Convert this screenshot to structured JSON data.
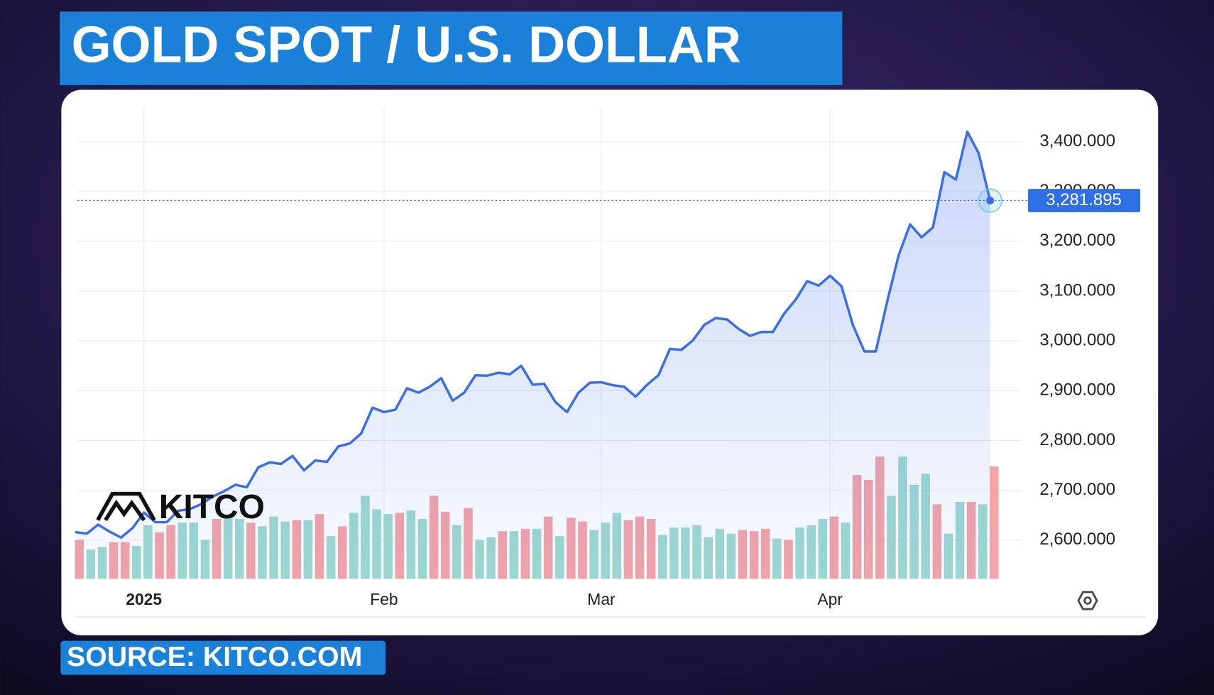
{
  "chart_data": {
    "type": "line",
    "title": "GOLD SPOT / U.S. DOLLAR",
    "source": "SOURCE: KITCO.COM",
    "watermark": "KITCO",
    "color": "#3a6ee8",
    "categories": [
      null,
      null,
      null,
      null,
      null,
      null,
      "2025",
      null,
      null,
      null,
      null,
      null,
      null,
      null,
      null,
      null,
      null,
      null,
      null,
      null,
      null,
      null,
      null,
      null,
      null,
      null,
      null,
      "Feb",
      null,
      null,
      null,
      null,
      null,
      null,
      null,
      null,
      null,
      null,
      null,
      null,
      null,
      null,
      null,
      null,
      null,
      null,
      "Mar",
      null,
      null,
      null,
      null,
      null,
      null,
      null,
      null,
      null,
      null,
      null,
      null,
      null,
      null,
      null,
      null,
      null,
      null,
      null,
      "Apr",
      null,
      null,
      null,
      null,
      null,
      null,
      null,
      null,
      null,
      null,
      null,
      null,
      null,
      null
    ],
    "values": [
      2616,
      2613,
      2631,
      2617,
      2605,
      2624,
      2655,
      2636,
      2636,
      2659,
      2662,
      2672,
      2687,
      2698,
      2711,
      2706,
      2746,
      2756,
      2753,
      2769,
      2740,
      2760,
      2757,
      2788,
      2794,
      2814,
      2866,
      2857,
      2862,
      2905,
      2896,
      2908,
      2925,
      2880,
      2896,
      2931,
      2930,
      2936,
      2933,
      2950,
      2912,
      2914,
      2877,
      2857,
      2896,
      2916,
      2917,
      2911,
      2908,
      2888,
      2912,
      2931,
      2984,
      2982,
      3001,
      3032,
      3046,
      3043,
      3024,
      3010,
      3018,
      3018,
      3055,
      3083,
      3120,
      3111,
      3131,
      3110,
      3032,
      2979,
      2979,
      3079,
      3172,
      3234,
      3208,
      3228,
      3339,
      3324,
      3420,
      3377,
      3281.895
    ],
    "current_price": {
      "value": 3281.895,
      "label": "3,281.895"
    },
    "volume": {
      "values": [
        32,
        24,
        26,
        30,
        30,
        27,
        44,
        38,
        44,
        46,
        46,
        32,
        49,
        51,
        49,
        46,
        43,
        51,
        47,
        48,
        48,
        53,
        35,
        43,
        54,
        68,
        57,
        53,
        54,
        56,
        49,
        68,
        55,
        44,
        58,
        32,
        34,
        39,
        39,
        41,
        41,
        51,
        35,
        50,
        47,
        40,
        46,
        54,
        48,
        51,
        49,
        36,
        42,
        42,
        44,
        34,
        41,
        37,
        40,
        39,
        41,
        33,
        32,
        42,
        44,
        49,
        51,
        46,
        85,
        81,
        100,
        68,
        100,
        77,
        86,
        61,
        37,
        63,
        63,
        61,
        92
      ],
      "colors": [
        "#f4a4a8",
        "#9fd9d0",
        "#9fd9d0",
        "#f4a4a8",
        "#f4a4a8",
        "#9fd9d0",
        "#9fd9d0",
        "#f4a4a8",
        "#f4a4a8",
        "#9fd9d0",
        "#9fd9d0",
        "#9fd9d0",
        "#f4a4a8",
        "#9fd9d0",
        "#9fd9d0",
        "#f4a4a8",
        "#9fd9d0",
        "#9fd9d0",
        "#9fd9d0",
        "#f4a4a8",
        "#9fd9d0",
        "#f4a4a8",
        "#9fd9d0",
        "#f4a4a8",
        "#9fd9d0",
        "#9fd9d0",
        "#9fd9d0",
        "#9fd9d0",
        "#f4a4a8",
        "#9fd9d0",
        "#9fd9d0",
        "#f4a4a8",
        "#f4a4a8",
        "#9fd9d0",
        "#f4a4a8",
        "#9fd9d0",
        "#9fd9d0",
        "#f4a4a8",
        "#9fd9d0",
        "#f4a4a8",
        "#9fd9d0",
        "#f4a4a8",
        "#9fd9d0",
        "#f4a4a8",
        "#f4a4a8",
        "#9fd9d0",
        "#9fd9d0",
        "#9fd9d0",
        "#f4a4a8",
        "#f4a4a8",
        "#f4a4a8",
        "#9fd9d0",
        "#9fd9d0",
        "#9fd9d0",
        "#9fd9d0",
        "#9fd9d0",
        "#9fd9d0",
        "#9fd9d0",
        "#f4a4a8",
        "#f4a4a8",
        "#f4a4a8",
        "#9fd9d0",
        "#f4a4a8",
        "#9fd9d0",
        "#9fd9d0",
        "#9fd9d0",
        "#f4a4a8",
        "#9fd9d0",
        "#f4a4a8",
        "#f4a4a8",
        "#f4a4a8",
        "#9fd9d0",
        "#9fd9d0",
        "#9fd9d0",
        "#9fd9d0",
        "#f4a4a8",
        "#9fd9d0",
        "#9fd9d0",
        "#f4a4a8",
        "#9fd9d0",
        "#f4a4a8"
      ]
    },
    "ylim": [
      2522,
      3467
    ],
    "yticks": [
      {
        "value": 2600,
        "label": "2,600.000"
      },
      {
        "value": 2700,
        "label": "2,700.000"
      },
      {
        "value": 2800,
        "label": "2,800.000"
      },
      {
        "value": 2900,
        "label": "2,900.000"
      },
      {
        "value": 3000,
        "label": "3,000.000"
      },
      {
        "value": 3100,
        "label": "3,100.000"
      },
      {
        "value": 3200,
        "label": "3,200.000"
      },
      {
        "value": 3300,
        "label": "3,300.000"
      },
      {
        "value": 3400,
        "label": "3,400.000"
      }
    ],
    "grid": true
  }
}
